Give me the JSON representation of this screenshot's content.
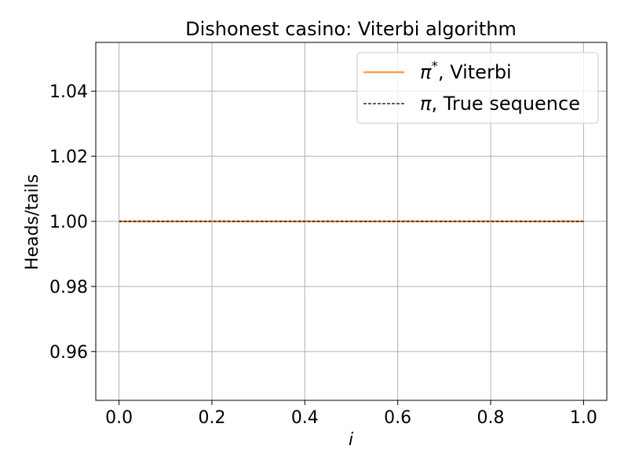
{
  "chart_data": {
    "type": "line",
    "title": "Dishonest casino: Viterbi algorithm",
    "xlabel": "i",
    "ylabel": "Heads/tails",
    "xlim": [
      -0.05,
      1.05
    ],
    "ylim": [
      0.945,
      1.055
    ],
    "x_ticks": [
      0.0,
      0.2,
      0.4,
      0.6,
      0.8,
      1.0
    ],
    "x_tick_labels": [
      "0.0",
      "0.2",
      "0.4",
      "0.6",
      "0.8",
      "1.0"
    ],
    "y_ticks": [
      0.96,
      0.98,
      1.0,
      1.02,
      1.04
    ],
    "y_tick_labels": [
      "0.96",
      "0.98",
      "1.00",
      "1.02",
      "1.04"
    ],
    "grid": true,
    "legend_position": "top-right",
    "series": [
      {
        "name_symbol": "π",
        "name_superscript": "*",
        "name_suffix": ", Viterbi",
        "color": "#f5a05a",
        "style": "solid",
        "x": [
          0.0,
          1.0
        ],
        "y": [
          1.0,
          1.0
        ]
      },
      {
        "name_symbol": "π",
        "name_superscript": "",
        "name_suffix": ", True sequence",
        "color": "#000000",
        "style": "dashed",
        "x": [
          0.0,
          1.0
        ],
        "y": [
          1.0,
          1.0
        ]
      }
    ]
  }
}
